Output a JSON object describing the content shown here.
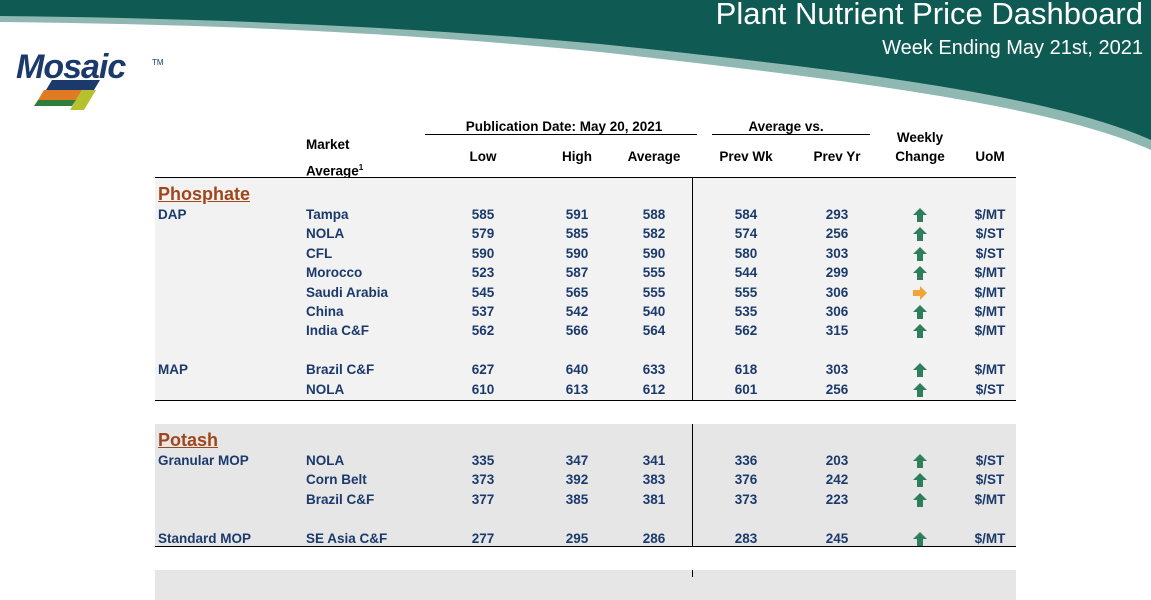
{
  "header": {
    "title": "Plant Nutrient Price Dashboard",
    "subtitle": "Week Ending May 21st, 2021",
    "brand": "Mosaic",
    "brand_color": "#0f5a52"
  },
  "table": {
    "header": {
      "market_line1": "Market",
      "market_line2": "Average",
      "footnote": "1",
      "publication": "Publication Date:  May 20, 2021",
      "average_vs": "Average  vs.",
      "low": "Low",
      "high": "High",
      "average": "Average",
      "prev_wk": "Prev Wk",
      "prev_yr": "Prev Yr",
      "weekly": "Weekly",
      "change": "Change",
      "uom": "UoM"
    },
    "sections": [
      {
        "name": "Phosphate",
        "groups": [
          {
            "product": "DAP",
            "rows": [
              {
                "market": "Tampa",
                "low": "585",
                "high": "591",
                "avg": "588",
                "prev_wk": "584",
                "prev_yr": "293",
                "change": "up",
                "uom": "$/MT"
              },
              {
                "market": "NOLA",
                "low": "579",
                "high": "585",
                "avg": "582",
                "prev_wk": "574",
                "prev_yr": "256",
                "change": "up",
                "uom": "$/ST"
              },
              {
                "market": "CFL",
                "low": "590",
                "high": "590",
                "avg": "590",
                "prev_wk": "580",
                "prev_yr": "303",
                "change": "up",
                "uom": "$/ST"
              },
              {
                "market": "Morocco",
                "low": "523",
                "high": "587",
                "avg": "555",
                "prev_wk": "544",
                "prev_yr": "299",
                "change": "up",
                "uom": "$/MT"
              },
              {
                "market": "Saudi Arabia",
                "low": "545",
                "high": "565",
                "avg": "555",
                "prev_wk": "555",
                "prev_yr": "306",
                "change": "flat",
                "uom": "$/MT"
              },
              {
                "market": "China",
                "low": "537",
                "high": "542",
                "avg": "540",
                "prev_wk": "535",
                "prev_yr": "306",
                "change": "up",
                "uom": "$/MT"
              },
              {
                "market": "India C&F",
                "low": "562",
                "high": "566",
                "avg": "564",
                "prev_wk": "562",
                "prev_yr": "315",
                "change": "up",
                "uom": "$/MT"
              }
            ]
          },
          {
            "product": "MAP",
            "rows": [
              {
                "market": "Brazil C&F",
                "low": "627",
                "high": "640",
                "avg": "633",
                "prev_wk": "618",
                "prev_yr": "303",
                "change": "up",
                "uom": "$/MT"
              },
              {
                "market": "NOLA",
                "low": "610",
                "high": "613",
                "avg": "612",
                "prev_wk": "601",
                "prev_yr": "256",
                "change": "up",
                "uom": "$/ST"
              }
            ]
          }
        ]
      },
      {
        "name": "Potash",
        "groups": [
          {
            "product": "Granular MOP",
            "rows": [
              {
                "market": "NOLA",
                "low": "335",
                "high": "347",
                "avg": "341",
                "prev_wk": "336",
                "prev_yr": "203",
                "change": "up",
                "uom": "$/ST"
              },
              {
                "market": "Corn Belt",
                "low": "373",
                "high": "392",
                "avg": "383",
                "prev_wk": "376",
                "prev_yr": "242",
                "change": "up",
                "uom": "$/ST"
              },
              {
                "market": "Brazil C&F",
                "low": "377",
                "high": "385",
                "avg": "381",
                "prev_wk": "373",
                "prev_yr": "223",
                "change": "up",
                "uom": "$/MT"
              }
            ]
          },
          {
            "product": "Standard MOP",
            "rows": [
              {
                "market": "SE Asia C&F",
                "low": "277",
                "high": "295",
                "avg": "286",
                "prev_wk": "283",
                "prev_yr": "245",
                "change": "up",
                "uom": "$/MT"
              }
            ]
          }
        ]
      }
    ],
    "colors": {
      "text": "#1b3a6b",
      "section": "#a0461c",
      "up_arrow": "#2e7d5b",
      "flat_arrow": "#f0a43a",
      "band": "#ebebeb"
    }
  }
}
